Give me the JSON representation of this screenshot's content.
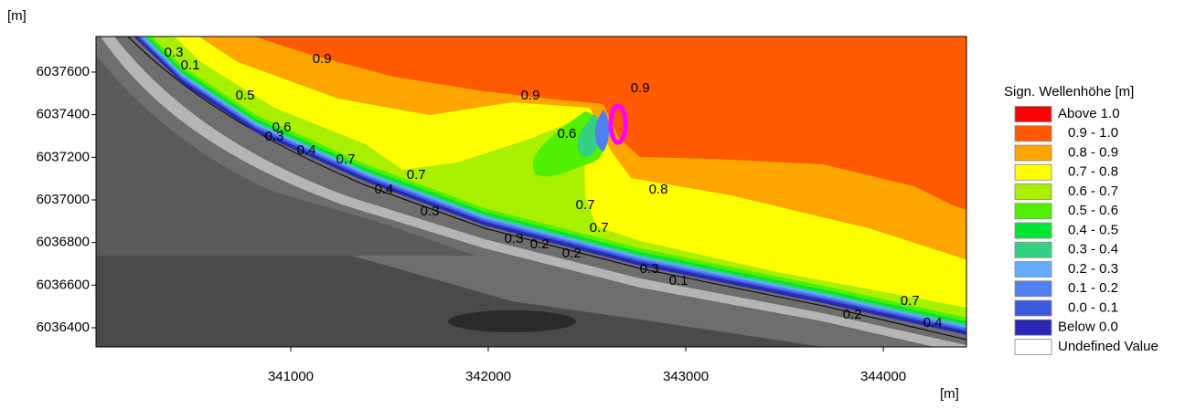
{
  "chart_data": {
    "type": "contour",
    "x_label": "[m]",
    "y_label": "[m]",
    "xlim": [
      340014,
      344421
    ],
    "ylim": [
      6036310,
      6037767
    ],
    "xticks": [
      341000,
      342000,
      343000,
      344000
    ],
    "yticks": [
      6036400,
      6036600,
      6036800,
      6037000,
      6037200,
      6037400,
      6037600
    ],
    "legend_title": "Sign. Wellenhöhe [m]",
    "legend": [
      {
        "name": "Above 1.0",
        "color": "#ff0000"
      },
      {
        "name": "0.9 - 1.0",
        "color": "#ff5a00"
      },
      {
        "name": "0.8 - 0.9",
        "color": "#ffa500"
      },
      {
        "name": "0.7 - 0.8",
        "color": "#ffff00"
      },
      {
        "name": "0.6 - 0.7",
        "color": "#a8f000"
      },
      {
        "name": "0.5 - 0.6",
        "color": "#50f000"
      },
      {
        "name": "0.4 - 0.5",
        "color": "#00e632"
      },
      {
        "name": "0.3 - 0.4",
        "color": "#32d080"
      },
      {
        "name": "0.2 - 0.3",
        "color": "#64aaff"
      },
      {
        "name": "0.1 - 0.2",
        "color": "#5080f0"
      },
      {
        "name": "0.0 - 0.1",
        "color": "#3c5adc"
      },
      {
        "name": "Below 0.0",
        "color": "#2828b4"
      },
      {
        "name": "Undefined Value",
        "color": "#ffffff"
      }
    ],
    "contour_labels": [
      {
        "value": 0.9,
        "x": 341158,
        "y": 6037660
      },
      {
        "value": 0.9,
        "x": 342213,
        "y": 6037488
      },
      {
        "value": 0.9,
        "x": 342769,
        "y": 6037523
      },
      {
        "value": 0.6,
        "x": 342398,
        "y": 6037308
      },
      {
        "value": 0.5,
        "x": 340769,
        "y": 6037488
      },
      {
        "value": 0.6,
        "x": 340954,
        "y": 6037338
      },
      {
        "value": 0.3,
        "x": 340917,
        "y": 6037296
      },
      {
        "value": 0.4,
        "x": 341079,
        "y": 6037231
      },
      {
        "value": 0.7,
        "x": 341278,
        "y": 6037188
      },
      {
        "value": 0.7,
        "x": 341635,
        "y": 6037116
      },
      {
        "value": 0.4,
        "x": 341472,
        "y": 6037047
      },
      {
        "value": 0.3,
        "x": 341704,
        "y": 6036944
      },
      {
        "value": 0.8,
        "x": 342861,
        "y": 6037047
      },
      {
        "value": 0.7,
        "x": 342491,
        "y": 6036974
      },
      {
        "value": 0.7,
        "x": 342561,
        "y": 6036867
      },
      {
        "value": 0.3,
        "x": 342130,
        "y": 6036816
      },
      {
        "value": 0.2,
        "x": 342260,
        "y": 6036790
      },
      {
        "value": 0.2,
        "x": 342422,
        "y": 6036747
      },
      {
        "value": 0.3,
        "x": 342815,
        "y": 6036674
      },
      {
        "value": 0.1,
        "x": 342963,
        "y": 6036618
      },
      {
        "value": 0.7,
        "x": 344135,
        "y": 6036524
      },
      {
        "value": 0.2,
        "x": 343843,
        "y": 6036460
      },
      {
        "value": 0.4,
        "x": 344250,
        "y": 6036421
      },
      {
        "value": 0.3,
        "x": 340408,
        "y": 6037690
      },
      {
        "value": 0.1,
        "x": 340491,
        "y": 6037630
      }
    ]
  }
}
